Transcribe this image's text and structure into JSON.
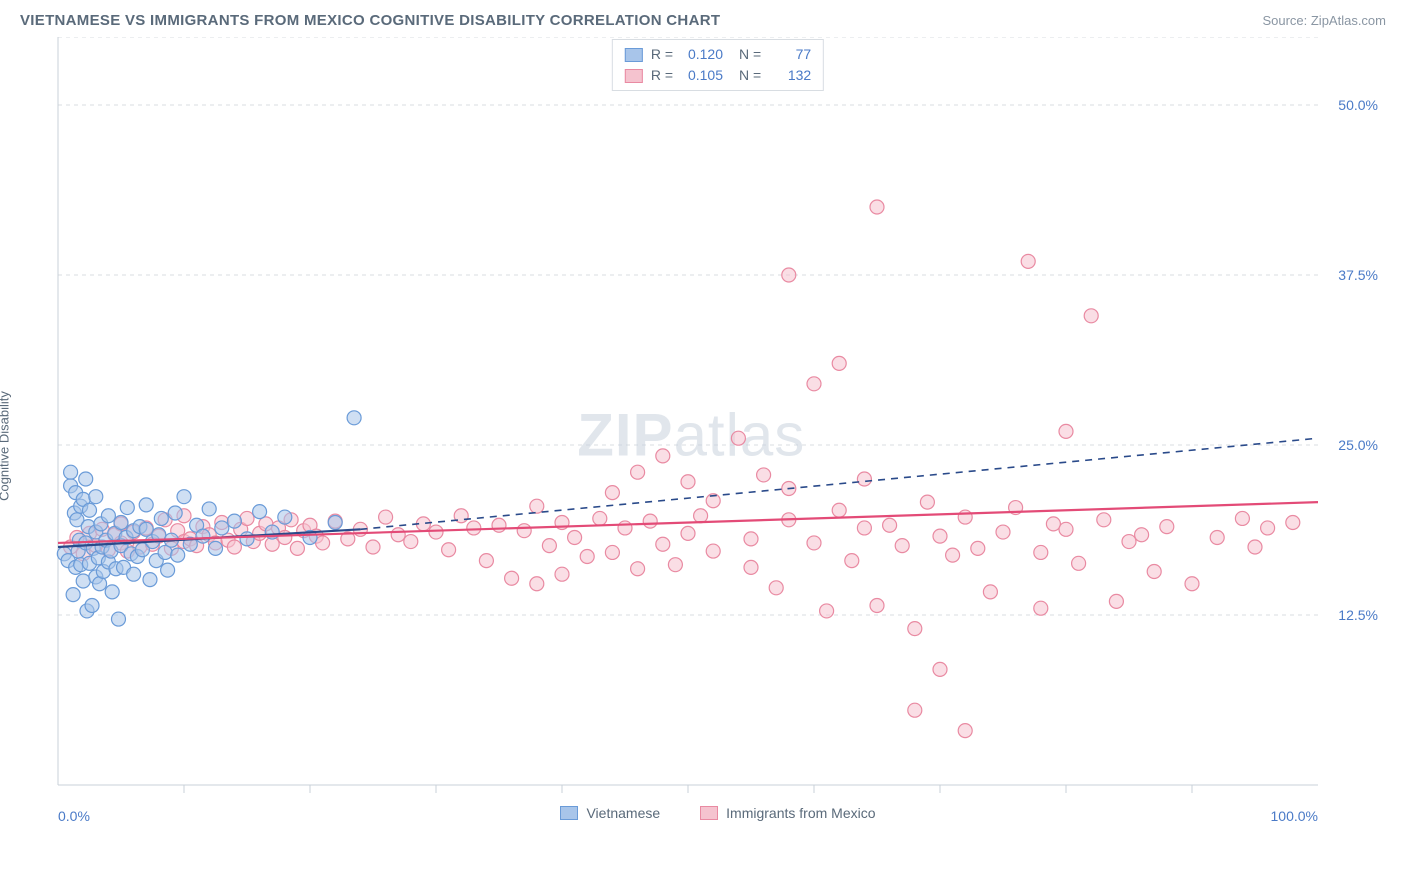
{
  "title": "VIETNAMESE VS IMMIGRANTS FROM MEXICO COGNITIVE DISABILITY CORRELATION CHART",
  "source_label": "Source: ",
  "source_name": "ZipAtlas.com",
  "ylabel": "Cognitive Disability",
  "watermark_a": "ZIP",
  "watermark_b": "atlas",
  "chart": {
    "type": "scatter",
    "xlim": [
      0,
      100
    ],
    "ylim": [
      0,
      55
    ],
    "x_ticks": [
      0,
      100
    ],
    "x_tick_labels": [
      "0.0%",
      "100.0%"
    ],
    "x_minor_ticks": [
      10,
      20,
      30,
      40,
      50,
      60,
      70,
      80,
      90
    ],
    "y_gridlines": [
      12.5,
      25.0,
      37.5,
      50.0
    ],
    "y_tick_labels": [
      "12.5%",
      "25.0%",
      "37.5%",
      "50.0%"
    ],
    "background_color": "#ffffff",
    "grid_color": "#d8dde2",
    "axis_label_color": "#4a7ac7",
    "marker_radius": 7,
    "marker_opacity": 0.55,
    "series": [
      {
        "name": "Vietnamese",
        "fill": "#a8c5ea",
        "stroke": "#6a9bd8",
        "trend_color": "#2a4a8a",
        "R": "0.120",
        "N": "77",
        "trend_solid": [
          [
            0,
            17.5
          ],
          [
            24,
            18.8
          ]
        ],
        "trend_dash": [
          [
            24,
            18.8
          ],
          [
            100,
            25.5
          ]
        ],
        "points": [
          [
            0.5,
            17
          ],
          [
            0.8,
            16.5
          ],
          [
            1,
            22
          ],
          [
            1,
            23
          ],
          [
            1.2,
            14
          ],
          [
            1.3,
            20
          ],
          [
            1.4,
            16
          ],
          [
            1.4,
            21.5
          ],
          [
            1.5,
            19.5
          ],
          [
            1.6,
            17.2
          ],
          [
            1.7,
            18
          ],
          [
            1.8,
            16.2
          ],
          [
            1.8,
            20.5
          ],
          [
            2,
            15
          ],
          [
            2,
            21
          ],
          [
            2.2,
            17.8
          ],
          [
            2.2,
            22.5
          ],
          [
            2.3,
            12.8
          ],
          [
            2.4,
            19
          ],
          [
            2.5,
            16.3
          ],
          [
            2.5,
            20.2
          ],
          [
            2.7,
            13.2
          ],
          [
            2.8,
            17.4
          ],
          [
            3,
            15.3
          ],
          [
            3,
            18.6
          ],
          [
            3,
            21.2
          ],
          [
            3.2,
            16.7
          ],
          [
            3.3,
            14.8
          ],
          [
            3.4,
            19.2
          ],
          [
            3.5,
            17.5
          ],
          [
            3.6,
            15.7
          ],
          [
            3.8,
            18
          ],
          [
            4,
            16.4
          ],
          [
            4,
            19.8
          ],
          [
            4.2,
            17.2
          ],
          [
            4.3,
            14.2
          ],
          [
            4.5,
            18.5
          ],
          [
            4.6,
            15.9
          ],
          [
            4.8,
            12.2
          ],
          [
            5,
            17.6
          ],
          [
            5,
            19.3
          ],
          [
            5.2,
            16
          ],
          [
            5.4,
            18.2
          ],
          [
            5.5,
            20.4
          ],
          [
            5.8,
            17
          ],
          [
            6,
            15.5
          ],
          [
            6,
            18.7
          ],
          [
            6.3,
            16.8
          ],
          [
            6.5,
            19
          ],
          [
            6.7,
            17.3
          ],
          [
            7,
            18.8
          ],
          [
            7,
            20.6
          ],
          [
            7.3,
            15.1
          ],
          [
            7.5,
            17.9
          ],
          [
            7.8,
            16.5
          ],
          [
            8,
            18.4
          ],
          [
            8.2,
            19.6
          ],
          [
            8.5,
            17.1
          ],
          [
            8.7,
            15.8
          ],
          [
            9,
            18
          ],
          [
            9.3,
            20
          ],
          [
            9.5,
            16.9
          ],
          [
            10,
            21.2
          ],
          [
            10.5,
            17.7
          ],
          [
            11,
            19.1
          ],
          [
            11.5,
            18.3
          ],
          [
            12,
            20.3
          ],
          [
            12.5,
            17.4
          ],
          [
            13,
            18.9
          ],
          [
            14,
            19.4
          ],
          [
            15,
            18.1
          ],
          [
            16,
            20.1
          ],
          [
            17,
            18.6
          ],
          [
            18,
            19.7
          ],
          [
            20,
            18.2
          ],
          [
            22,
            19.3
          ],
          [
            23.5,
            27.0
          ]
        ]
      },
      {
        "name": "Immigrants from Mexico",
        "fill": "#f5c3cf",
        "stroke": "#e98aa2",
        "trend_color": "#e34b77",
        "R": "0.105",
        "N": "132",
        "trend_solid": [
          [
            0,
            17.8
          ],
          [
            100,
            20.8
          ]
        ],
        "trend_dash": null,
        "points": [
          [
            1,
            17.5
          ],
          [
            1.5,
            18.2
          ],
          [
            2,
            17
          ],
          [
            2.5,
            18.5
          ],
          [
            3,
            17.6
          ],
          [
            3.5,
            18.8
          ],
          [
            4,
            17.3
          ],
          [
            4.5,
            18.4
          ],
          [
            5,
            17.8
          ],
          [
            5,
            19.2
          ],
          [
            5.5,
            17.2
          ],
          [
            6,
            18.6
          ],
          [
            6.5,
            17.5
          ],
          [
            7,
            18.9
          ],
          [
            7.5,
            17.7
          ],
          [
            8,
            18.3
          ],
          [
            8.5,
            19.5
          ],
          [
            9,
            17.4
          ],
          [
            9.5,
            18.7
          ],
          [
            10,
            17.9
          ],
          [
            10,
            19.8
          ],
          [
            10.5,
            18.1
          ],
          [
            11,
            17.6
          ],
          [
            11.5,
            19
          ],
          [
            12,
            18.4
          ],
          [
            12.5,
            17.8
          ],
          [
            13,
            19.3
          ],
          [
            13.5,
            18
          ],
          [
            14,
            17.5
          ],
          [
            14.5,
            18.8
          ],
          [
            15,
            19.6
          ],
          [
            15.5,
            17.9
          ],
          [
            16,
            18.5
          ],
          [
            16.5,
            19.2
          ],
          [
            17,
            17.7
          ],
          [
            17.5,
            18.9
          ],
          [
            18,
            18.2
          ],
          [
            18.5,
            19.5
          ],
          [
            19,
            17.4
          ],
          [
            19.5,
            18.7
          ],
          [
            20,
            19.1
          ],
          [
            20.5,
            18.3
          ],
          [
            21,
            17.8
          ],
          [
            22,
            19.4
          ],
          [
            23,
            18.1
          ],
          [
            24,
            18.8
          ],
          [
            25,
            17.5
          ],
          [
            26,
            19.7
          ],
          [
            27,
            18.4
          ],
          [
            28,
            17.9
          ],
          [
            29,
            19.2
          ],
          [
            30,
            18.6
          ],
          [
            31,
            17.3
          ],
          [
            32,
            19.8
          ],
          [
            33,
            18.9
          ],
          [
            34,
            16.5
          ],
          [
            35,
            19.1
          ],
          [
            36,
            15.2
          ],
          [
            37,
            18.7
          ],
          [
            38,
            20.5
          ],
          [
            38,
            14.8
          ],
          [
            39,
            17.6
          ],
          [
            40,
            19.3
          ],
          [
            40,
            15.5
          ],
          [
            41,
            18.2
          ],
          [
            42,
            16.8
          ],
          [
            43,
            19.6
          ],
          [
            44,
            21.5
          ],
          [
            44,
            17.1
          ],
          [
            45,
            18.9
          ],
          [
            46,
            15.9
          ],
          [
            46,
            23.0
          ],
          [
            47,
            19.4
          ],
          [
            48,
            17.7
          ],
          [
            48,
            24.2
          ],
          [
            49,
            16.2
          ],
          [
            50,
            18.5
          ],
          [
            51,
            19.8
          ],
          [
            52,
            17.2
          ],
          [
            54,
            25.5
          ],
          [
            55,
            18.1
          ],
          [
            56,
            22.8
          ],
          [
            57,
            14.5
          ],
          [
            58,
            19.5
          ],
          [
            58,
            37.5
          ],
          [
            60,
            17.8
          ],
          [
            60,
            29.5
          ],
          [
            61,
            12.8
          ],
          [
            62,
            20.2
          ],
          [
            62,
            31.0
          ],
          [
            63,
            16.5
          ],
          [
            64,
            18.9
          ],
          [
            65,
            42.5
          ],
          [
            65,
            13.2
          ],
          [
            66,
            19.1
          ],
          [
            67,
            17.6
          ],
          [
            68,
            11.5
          ],
          [
            69,
            20.8
          ],
          [
            70,
            18.3
          ],
          [
            70,
            8.5
          ],
          [
            71,
            16.9
          ],
          [
            72,
            19.7
          ],
          [
            72,
            4.0
          ],
          [
            73,
            17.4
          ],
          [
            74,
            14.2
          ],
          [
            75,
            18.6
          ],
          [
            76,
            20.4
          ],
          [
            77,
            38.5
          ],
          [
            78,
            17.1
          ],
          [
            79,
            19.2
          ],
          [
            80,
            18.8
          ],
          [
            80,
            26.0
          ],
          [
            81,
            16.3
          ],
          [
            82,
            34.5
          ],
          [
            83,
            19.5
          ],
          [
            84,
            13.5
          ],
          [
            85,
            17.9
          ],
          [
            86,
            18.4
          ],
          [
            87,
            15.7
          ],
          [
            88,
            19
          ],
          [
            90,
            14.8
          ],
          [
            92,
            18.2
          ],
          [
            94,
            19.6
          ],
          [
            95,
            17.5
          ],
          [
            96,
            18.9
          ],
          [
            98,
            19.3
          ],
          [
            78,
            13.0
          ],
          [
            68,
            5.5
          ],
          [
            64,
            22.5
          ],
          [
            58,
            21.8
          ],
          [
            55,
            16.0
          ],
          [
            52,
            20.9
          ],
          [
            50,
            22.3
          ]
        ]
      }
    ]
  },
  "stats_labels": {
    "R": "R =",
    "N": "N ="
  },
  "legend": {
    "series1": "Vietnamese",
    "series2": "Immigrants from Mexico"
  }
}
